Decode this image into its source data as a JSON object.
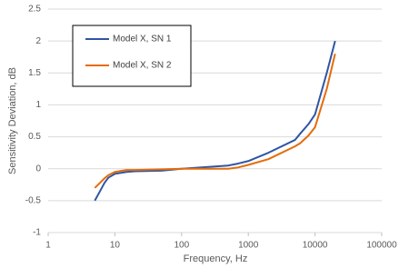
{
  "chart_data": {
    "type": "line",
    "x_label": "Frequency, Hz",
    "y_label": "Sensitivity Deviation, dB",
    "xscale": "log",
    "grid": true,
    "legend": "upper left",
    "x": [
      5,
      6,
      7,
      8,
      10,
      15,
      20,
      50,
      100,
      200,
      500,
      700,
      1000,
      2000,
      5000,
      6000,
      8000,
      10000,
      15000,
      20000
    ],
    "series": [
      {
        "name": "Model X, SN 1",
        "color": "#2f55a4",
        "values": [
          -0.5,
          -0.35,
          -0.22,
          -0.14,
          -0.08,
          -0.05,
          -0.04,
          -0.03,
          0,
          0.02,
          0.05,
          0.08,
          0.12,
          0.25,
          0.45,
          0.55,
          0.7,
          0.85,
          1.5,
          2.0
        ]
      },
      {
        "name": "Model X, SN 2",
        "color": "#e46c0a",
        "values": [
          -0.3,
          -0.22,
          -0.15,
          -0.1,
          -0.05,
          -0.02,
          -0.02,
          -0.01,
          0,
          0,
          0,
          0.02,
          0.06,
          0.15,
          0.35,
          0.4,
          0.52,
          0.65,
          1.25,
          1.8
        ]
      }
    ],
    "xlim": [
      1,
      100000
    ],
    "xticks": [
      1,
      10,
      100,
      1000,
      10000,
      100000
    ],
    "ylim": [
      -1,
      2.5
    ],
    "yticks": [
      -1,
      -0.5,
      0,
      0.5,
      1,
      1.5,
      2,
      2.5
    ]
  }
}
